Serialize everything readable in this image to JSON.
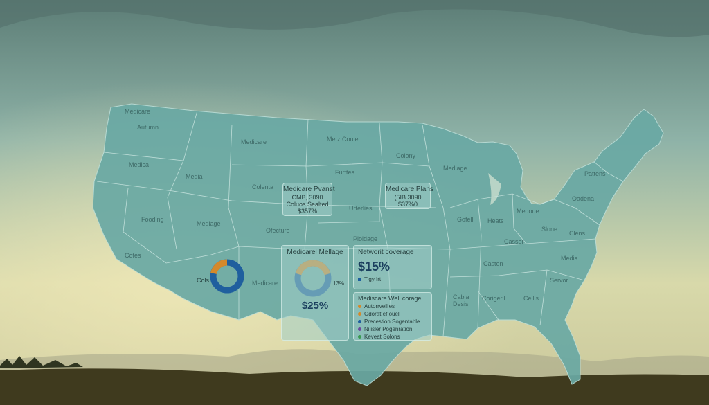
{
  "map_labels": {
    "s1": "Autumn",
    "s2": "Medicare",
    "s3": "Metz Coule",
    "s4": "Colony",
    "s5": "Medica",
    "s6": "Media",
    "s7": "Furttes",
    "s8": "Medlage",
    "s9": "Colenta",
    "s10": "Urterlies",
    "s11": "Fooding",
    "s12": "Mediage",
    "s13": "Ofecture",
    "s14": "Pioidage",
    "s15": "Cofes",
    "s16": "Medicare",
    "s17": "Gofell",
    "s18": "Heats",
    "s19": "Medoue",
    "s20": "Casser",
    "s21": "Pattens",
    "s22": "Oadena",
    "s23": "Slone",
    "s24": "Clens",
    "s25": "Casten",
    "s26": "Medis",
    "s27": "Servor",
    "s28": "Cabia Desis",
    "s29": "Corigeril",
    "s30": "Cellis",
    "s31": "Medicare"
  },
  "colors": {
    "donut_outer": "#1f5f9e",
    "donut_accent": "#d4892a",
    "map_fill": "#6aa9a4",
    "map_lines": "#c8e4df"
  },
  "cards": {
    "plans_left": {
      "title": "Medicare Pvanst",
      "line1": "CMB, 3090",
      "line2": "Coluos Sealted",
      "line3": "$357%"
    },
    "plans_right": {
      "title": "Medicare Plans",
      "line1": "(5IB 3090",
      "line2": "$37%0"
    },
    "usage": {
      "title": "Medicarel Mellage",
      "pct_side": "13%",
      "value": "$25%"
    },
    "network": {
      "title": "Networit coverage",
      "value": "$15%",
      "legend": "Tigy Irt"
    },
    "well": {
      "title": "Mediscare Well corage",
      "items": [
        {
          "label": "Autorrveilies",
          "color": "#d4892a"
        },
        {
          "label": "Odorat ef ouel",
          "color": "#d4892a"
        },
        {
          "label": "Precestion Sogentable",
          "color": "#1f5f9e"
        },
        {
          "label": "Nilisler Pogenration",
          "color": "#6c4a9e"
        },
        {
          "label": "Keveat Solons",
          "color": "#3b9a52"
        }
      ]
    },
    "donut_left_label": "Cols"
  }
}
